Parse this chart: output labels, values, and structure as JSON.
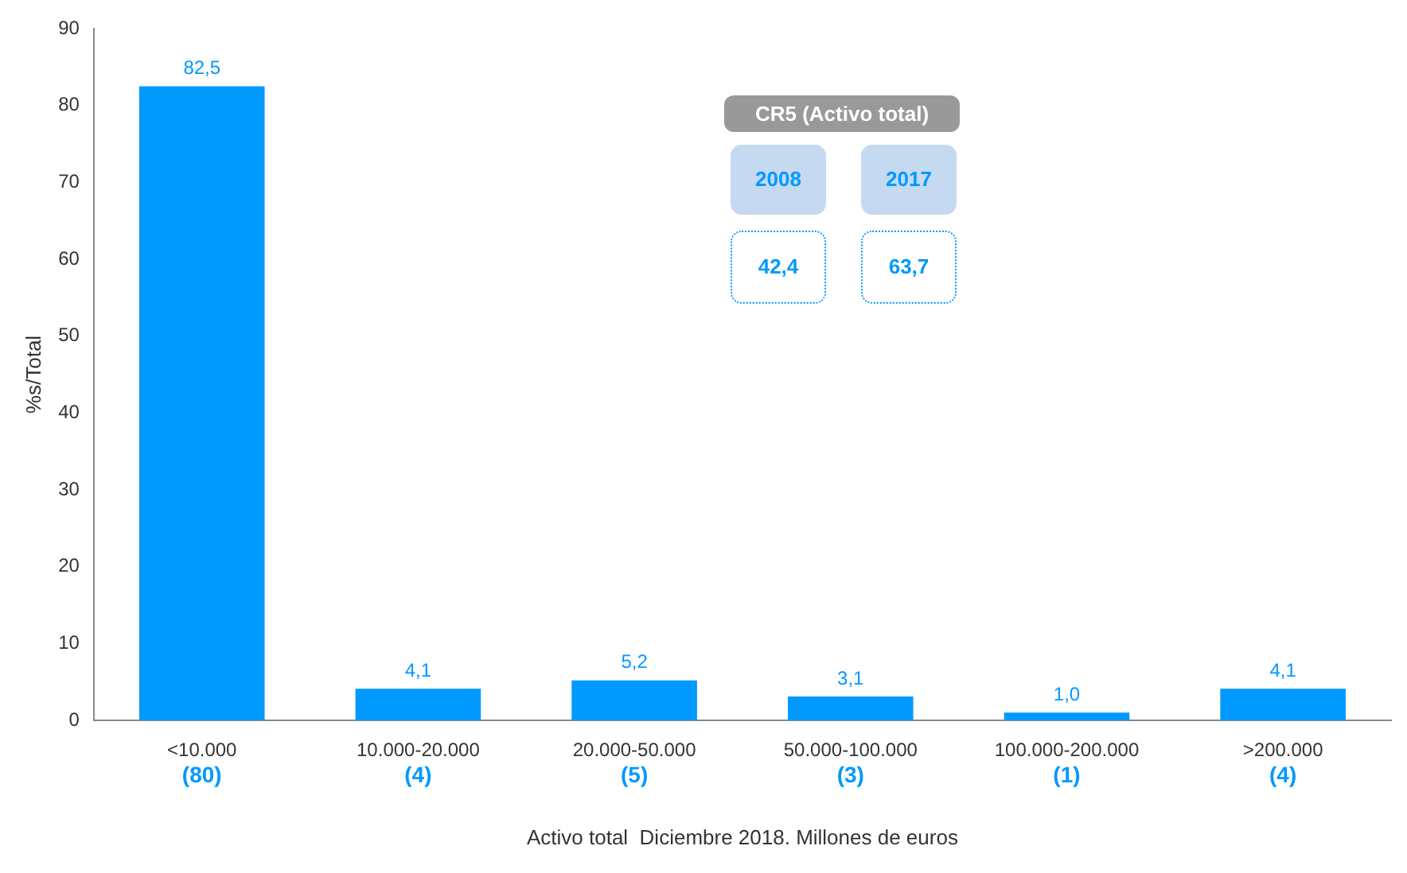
{
  "chart_data": {
    "type": "bar",
    "categories": [
      "<10.000",
      "10.000-20.000",
      "20.000-50.000",
      "50.000-100.000",
      "100.000-200.000",
      ">200.000"
    ],
    "values": [
      82.5,
      4.1,
      5.2,
      3.1,
      1.0,
      4.1
    ],
    "value_labels": [
      "82,5",
      "4,1",
      "5,2",
      "3,1",
      "1,0",
      "4,1"
    ],
    "color": "#0099ff",
    "ylim": [
      0,
      90
    ],
    "yticks": [
      0,
      10,
      20,
      30,
      40,
      50,
      60,
      70,
      80,
      90
    ],
    "ylabel": "%s/Total",
    "xlabel": "Activo total  Diciembre 2018. Millones de euros",
    "grid": false,
    "legend": false,
    "annotations": [
      "CR5 (Activo total)",
      "2008",
      "2017",
      "42,4",
      "63,7",
      "(80)",
      "(4)",
      "(5)",
      "(3)",
      "(1)",
      "(4)"
    ]
  }
}
